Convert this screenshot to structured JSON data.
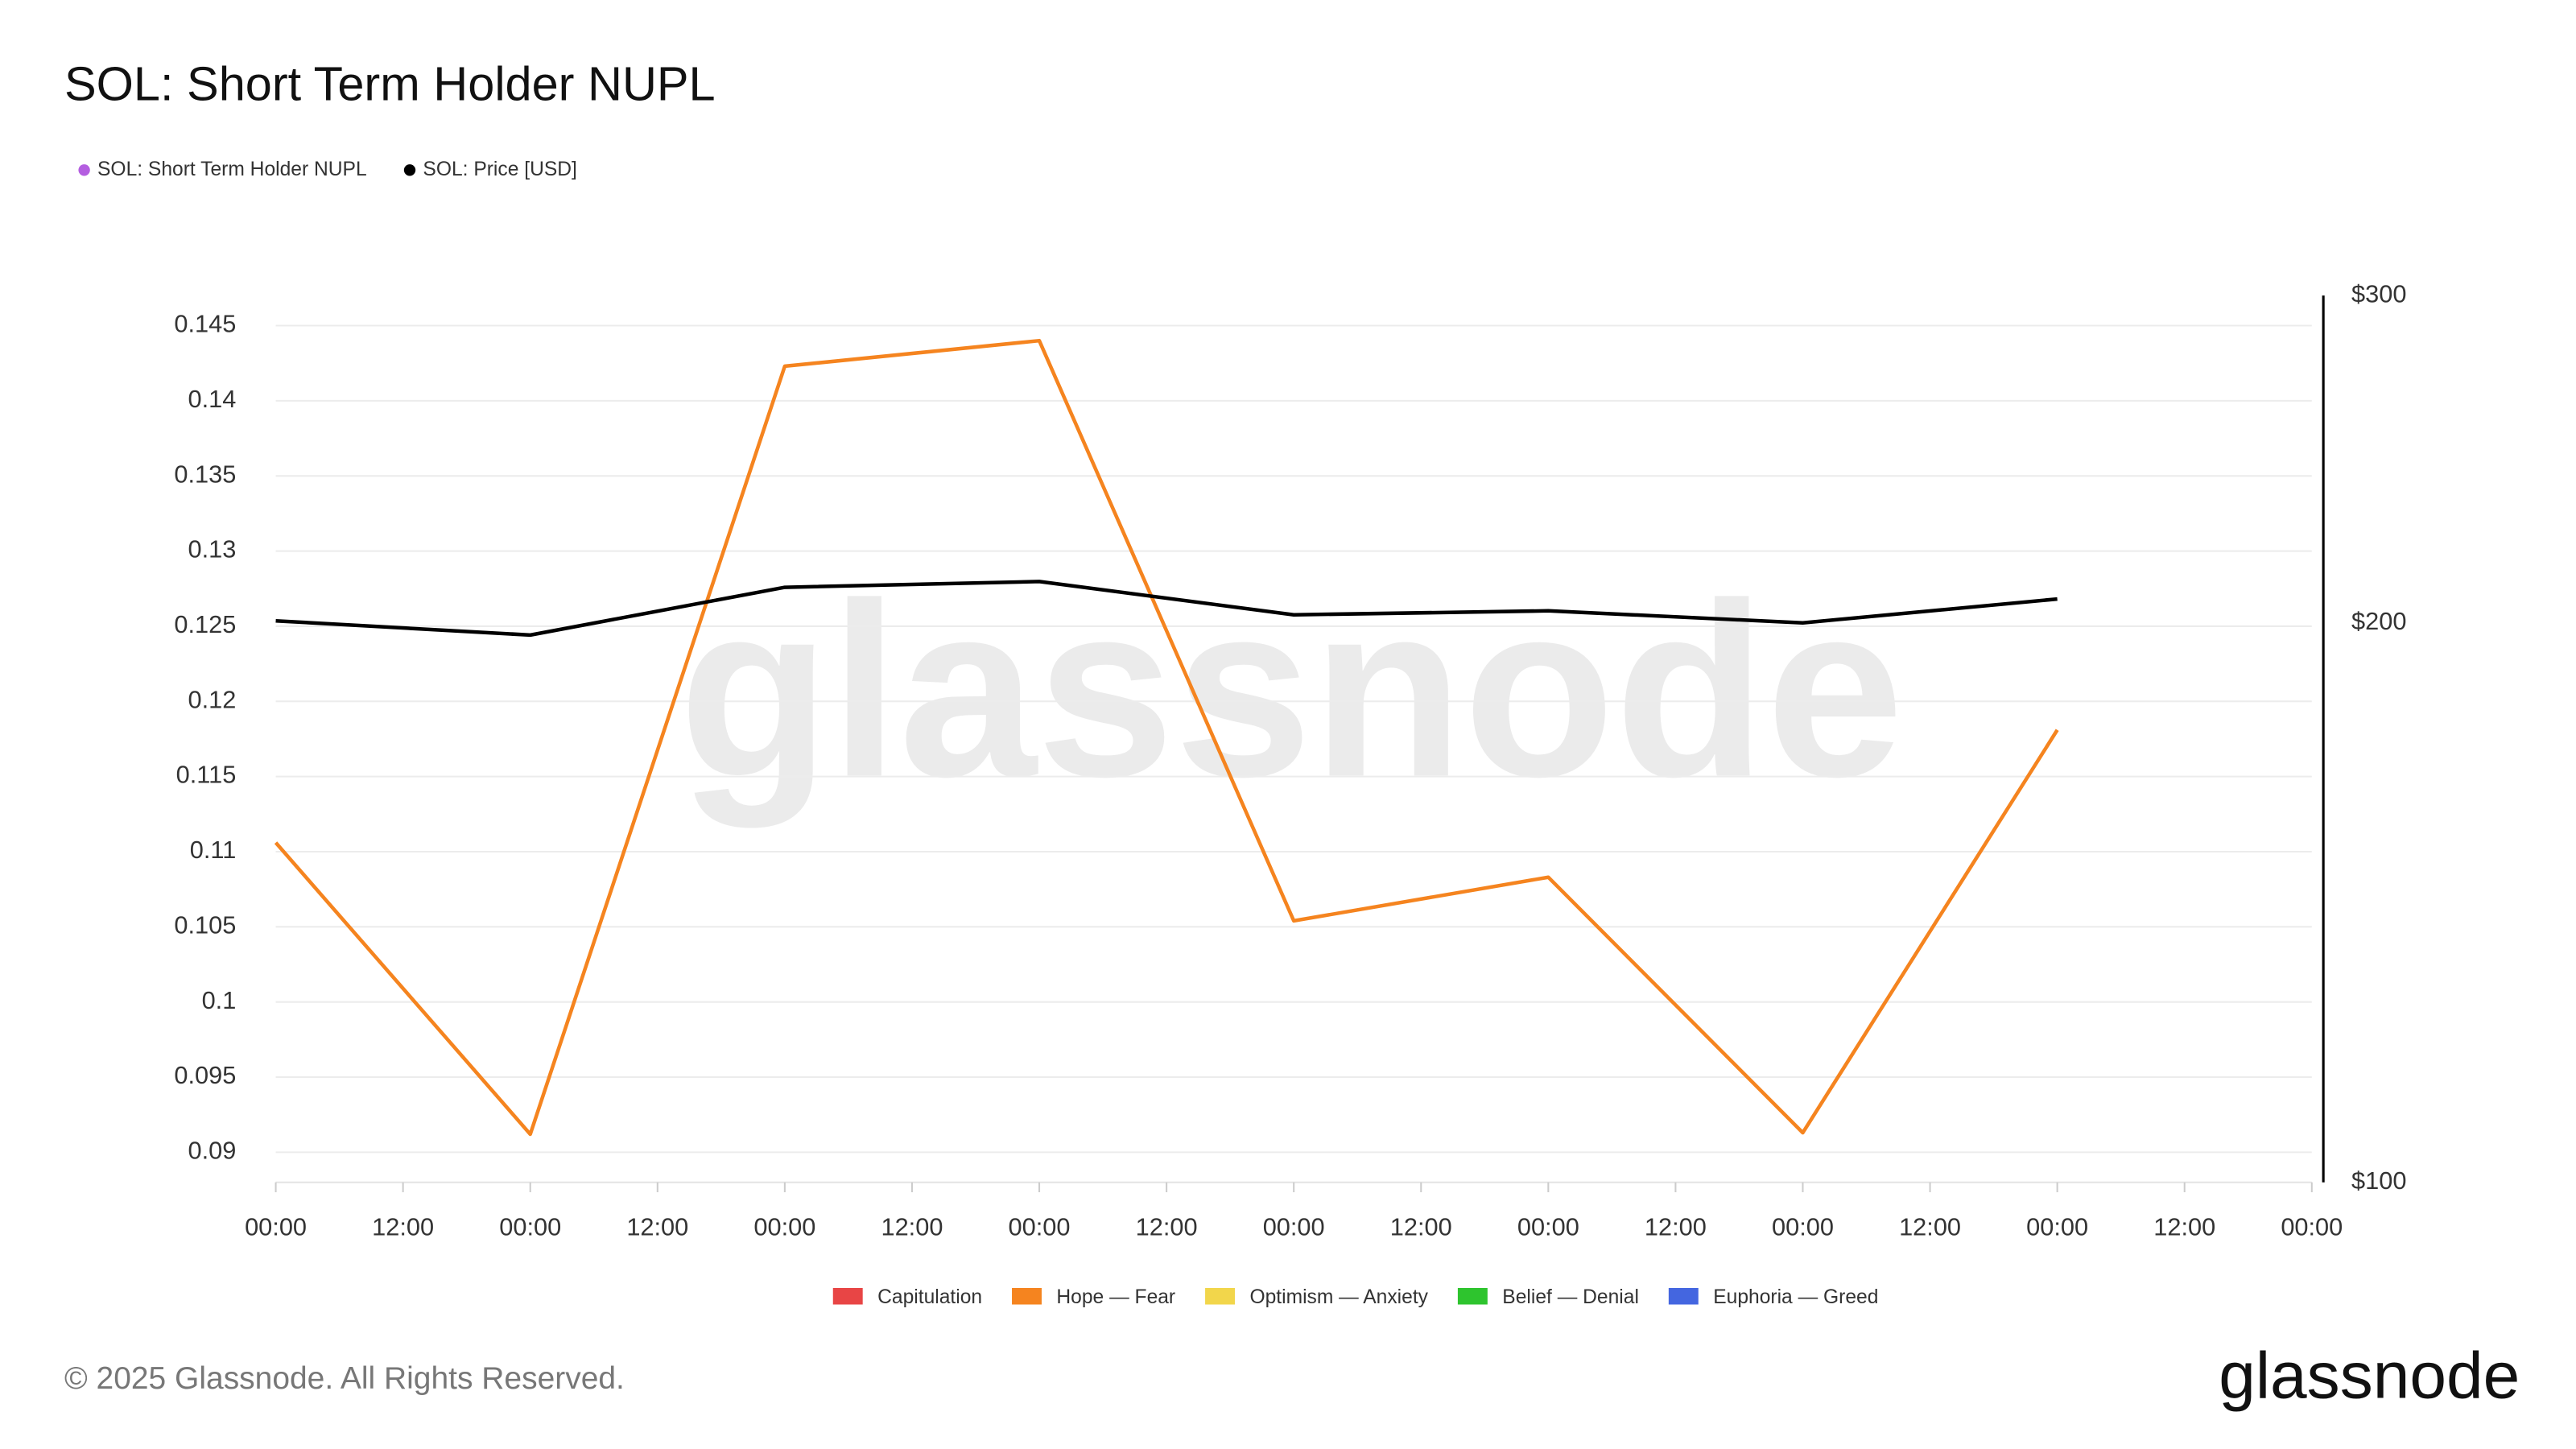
{
  "chart_data": {
    "type": "line",
    "title": "SOL: Short Term Holder NUPL",
    "x": [
      0,
      24,
      48,
      72,
      96,
      120,
      144,
      168
    ],
    "xlim": [
      0,
      192
    ],
    "xticks": [
      {
        "value": 0,
        "label": "00:00"
      },
      {
        "value": 12,
        "label": "12:00"
      },
      {
        "value": 24,
        "label": "00:00"
      },
      {
        "value": 36,
        "label": "12:00"
      },
      {
        "value": 48,
        "label": "00:00"
      },
      {
        "value": 60,
        "label": "12:00"
      },
      {
        "value": 72,
        "label": "00:00"
      },
      {
        "value": 84,
        "label": "12:00"
      },
      {
        "value": 96,
        "label": "00:00"
      },
      {
        "value": 108,
        "label": "12:00"
      },
      {
        "value": 120,
        "label": "00:00"
      },
      {
        "value": 132,
        "label": "12:00"
      },
      {
        "value": 144,
        "label": "00:00"
      },
      {
        "value": 156,
        "label": "12:00"
      },
      {
        "value": 168,
        "label": "00:00"
      },
      {
        "value": 180,
        "label": "12:00"
      },
      {
        "value": 192,
        "label": "00:00"
      }
    ],
    "ylim": [
      0.088,
      0.147
    ],
    "yticks": [
      0.09,
      0.095,
      0.1,
      0.105,
      0.11,
      0.115,
      0.12,
      0.125,
      0.13,
      0.135,
      0.14,
      0.145
    ],
    "y2lim": [
      100,
      300
    ],
    "y2ticks": [
      {
        "value": 100,
        "label": "$100"
      },
      {
        "value": 200,
        "label": "$200"
      },
      {
        "value": 300,
        "label": "$300"
      }
    ],
    "y2_log": true,
    "grid": true,
    "series": [
      {
        "name": "SOL: Short Term Holder NUPL",
        "color": "#f5841f",
        "legend_color": "#b45ee0",
        "values": [
          0.1106,
          0.0912,
          0.1423,
          0.144,
          0.1054,
          0.1083,
          0.0913,
          0.1181
        ]
      },
      {
        "name": "SOL: Price [USD]",
        "color": "#000000",
        "axis": "y2",
        "values": [
          200.5,
          197,
          209,
          210.5,
          202,
          203,
          200,
          206
        ]
      }
    ],
    "zones": [
      {
        "name": "Capitulation",
        "color": "#e84545"
      },
      {
        "name": "Hope — Fear",
        "color": "#f5841f"
      },
      {
        "name": "Optimism — Anxiety",
        "color": "#f2d64b"
      },
      {
        "name": "Belief — Denial",
        "color": "#2ec42e"
      },
      {
        "name": "Euphoria — Greed",
        "color": "#4466e0"
      }
    ],
    "watermark": "glassnode",
    "copyright": "© 2025 Glassnode. All Rights Reserved.",
    "logo": "glassnode"
  }
}
